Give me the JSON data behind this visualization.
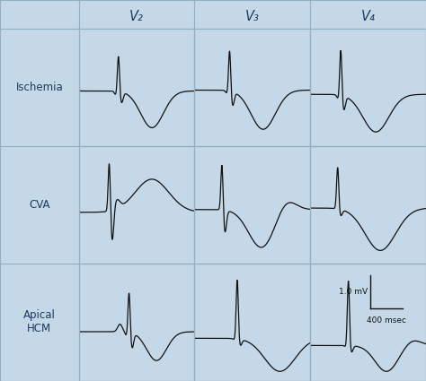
{
  "col_labels": [
    "V₂",
    "V₃",
    "V₄"
  ],
  "row_labels": [
    "Ischemia",
    "CVA",
    "Apical\nHCM"
  ],
  "header_bg": "#c5d8e8",
  "row_label_bg": "#c5d8e8",
  "cell_bg": "#faf6e4",
  "grid_color": "#8fafc4",
  "line_color": "#111111",
  "scale_text_mv": "1.0 mV",
  "scale_text_msec": "400 msec"
}
